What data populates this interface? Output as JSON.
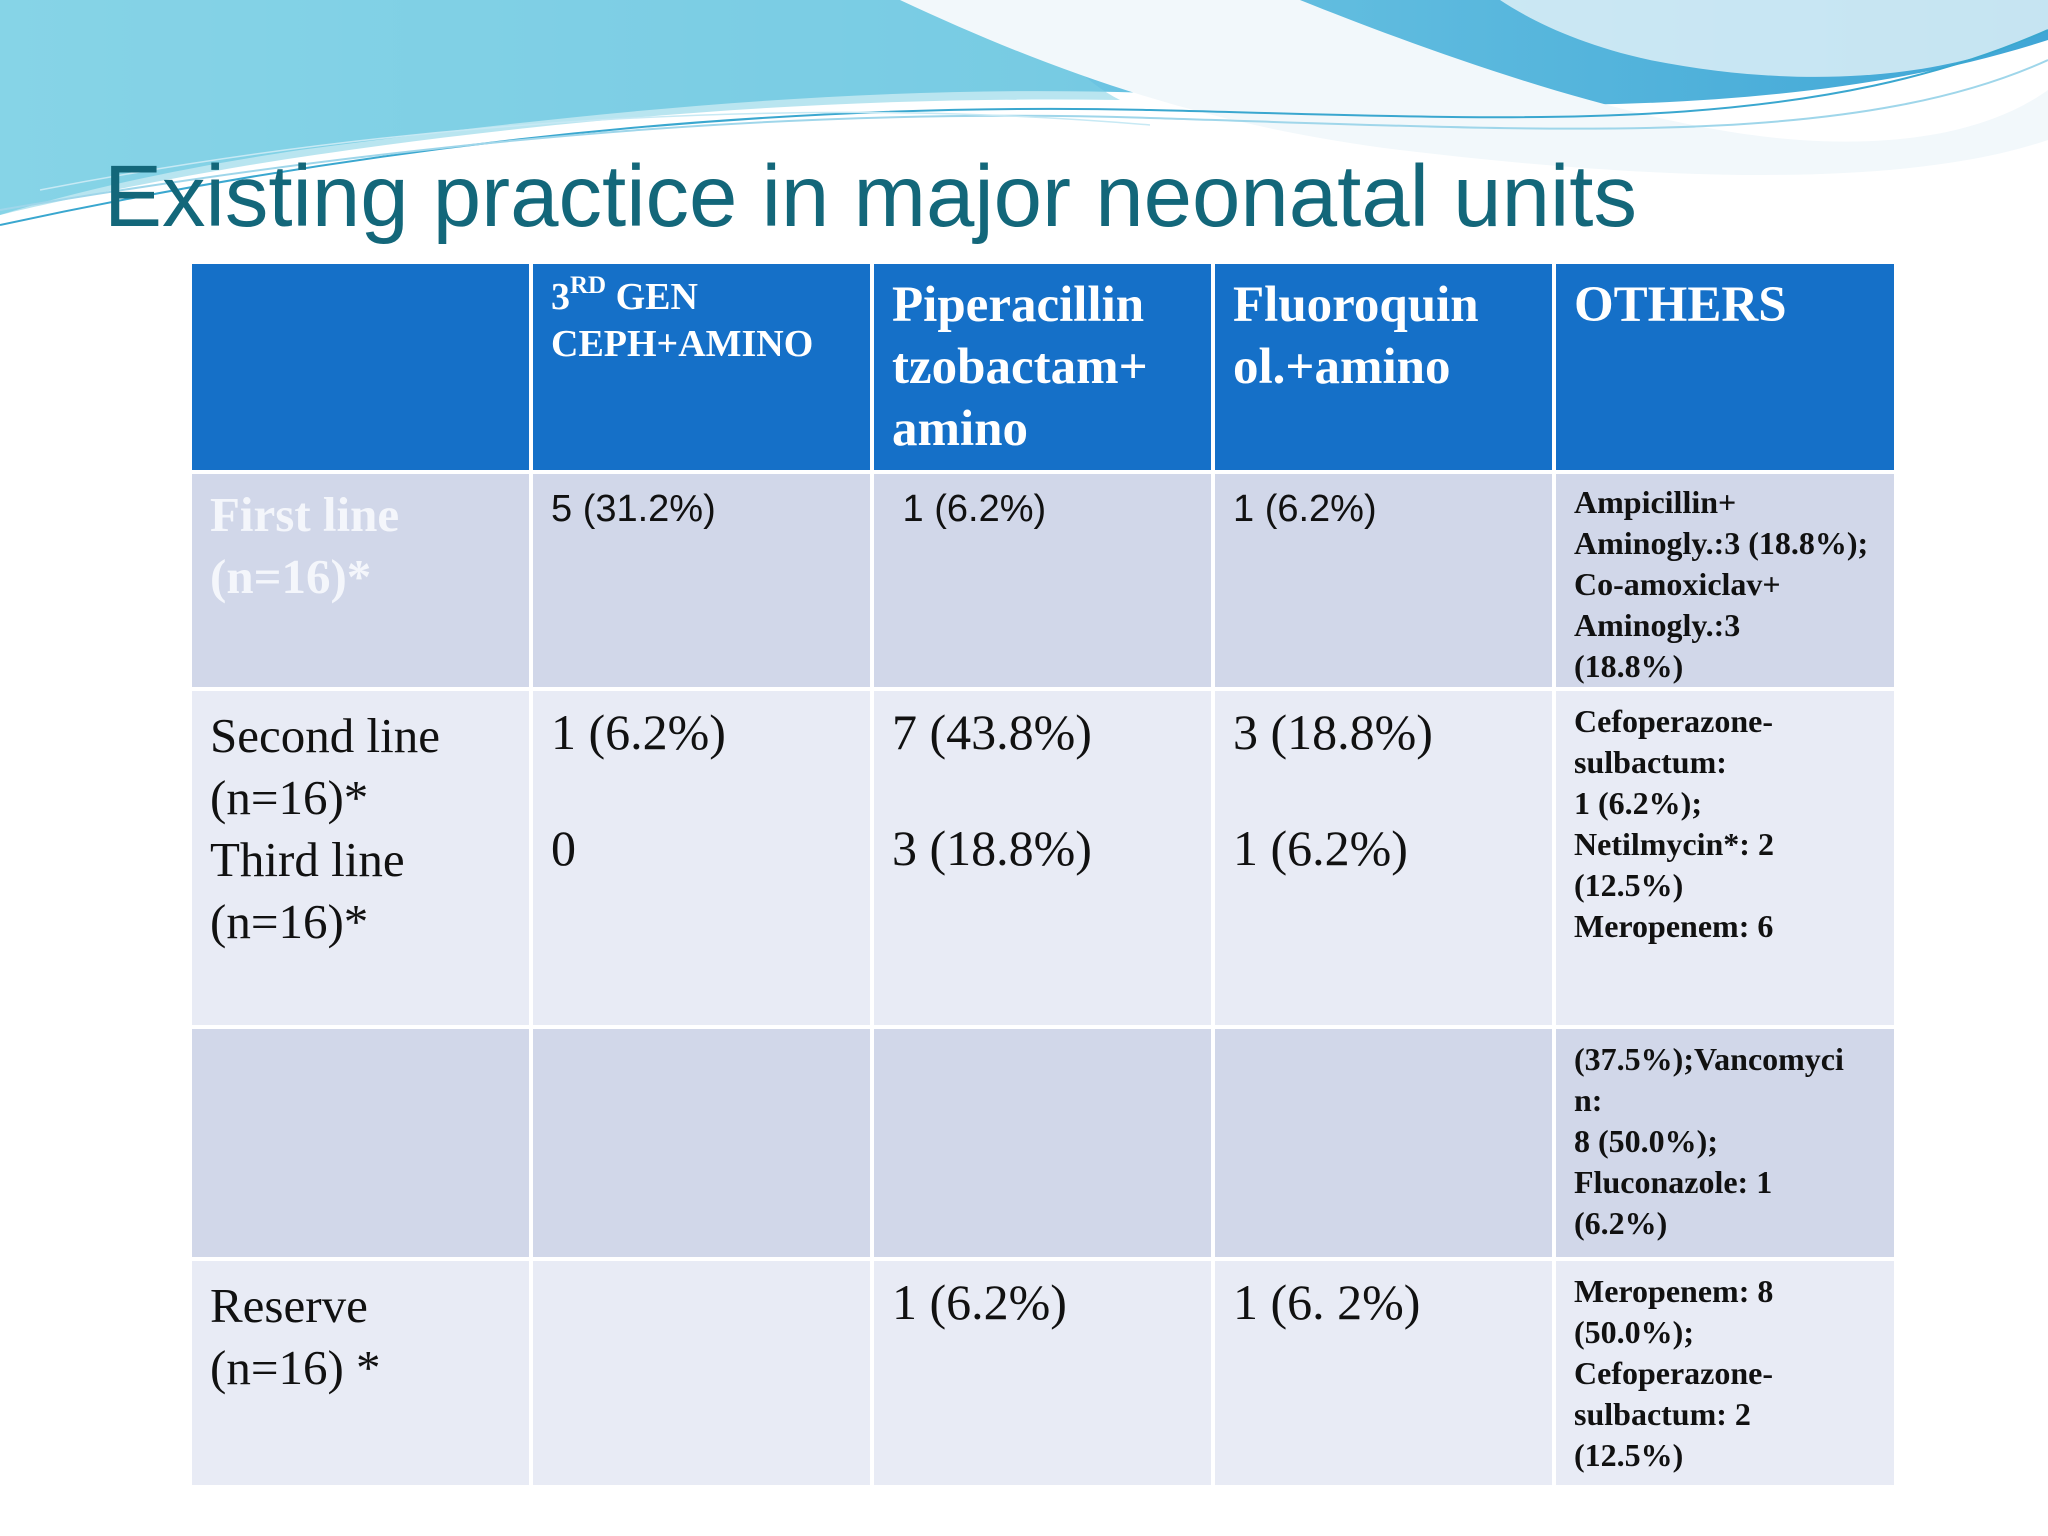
{
  "slide": {
    "title": "Existing practice in major neonatal units"
  },
  "table": {
    "header": {
      "ceph_num": "3",
      "ceph_sup": "RD",
      "ceph_line1": " GEN",
      "ceph_line2": "CEPH+AMINO",
      "pip": [
        "Piperacillin",
        "tzobactam+",
        "amino"
      ],
      "fluoro": [
        "Fluoroquin",
        "ol.+amino"
      ],
      "others": "OTHERS"
    },
    "rows": {
      "first": {
        "label": [
          "First line",
          "(n=16)*"
        ],
        "ceph": "5 (31.2%)",
        "pip": " 1 (6.2%)",
        "fluoro": "1 (6.2%)",
        "others": [
          "Ampicillin+",
          "Aminogly.:3 (18.8%);",
          "Co-amoxiclav+",
          "Aminogly.:3",
          "(18.8%)"
        ]
      },
      "second_third": {
        "label": [
          "Second line",
          "(n=16)*",
          "Third line",
          "(n=16)*"
        ],
        "ceph": [
          "1 (6.2%)",
          "0"
        ],
        "pip": [
          "7 (43.8%)",
          "3 (18.8%)"
        ],
        "fluoro": [
          "3 (18.8%)",
          "1 (6.2%)"
        ],
        "others": [
          "Cefoperazone-",
          "sulbactum:",
          "1 (6.2%);",
          "Netilmycin*: 2",
          "(12.5%)",
          "Meropenem: 6"
        ]
      },
      "continued": {
        "others": [
          "(37.5%);Vancomyci",
          "n:",
          "8 (50.0%);",
          "Fluconazole: 1",
          "(6.2%)"
        ]
      },
      "reserve": {
        "label": [
          "Reserve",
          "(n=16) *"
        ],
        "ceph": "",
        "pip": "1 (6.2%)",
        "fluoro": "1 (6. 2%)",
        "others": [
          "Meropenem: 8",
          "(50.0%);",
          "Cefoperazone-",
          "sulbactum: 2",
          "(12.5%)"
        ]
      }
    }
  },
  "colors": {
    "header_bg": "#1570c8",
    "band_dark": "#d1d7e9",
    "band_light": "#e8ebf5",
    "title": "#13677a"
  }
}
